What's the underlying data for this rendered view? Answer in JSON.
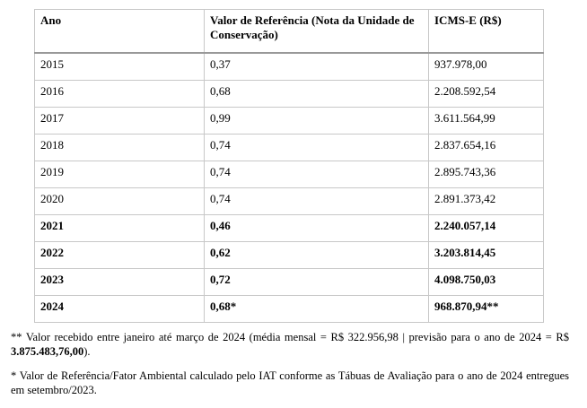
{
  "table": {
    "header": [
      "Ano",
      "Valor de Referência (Nota da Unidade de Conservação)",
      "ICMS-E (R$)"
    ],
    "rows": [
      {
        "cells": [
          "2015",
          "0,37",
          "937.978,00"
        ],
        "bold": false
      },
      {
        "cells": [
          "2016",
          "0,68",
          "2.208.592,54"
        ],
        "bold": false
      },
      {
        "cells": [
          "2017",
          "0,99",
          "3.611.564,99"
        ],
        "bold": false
      },
      {
        "cells": [
          "2018",
          "0,74",
          "2.837.654,16"
        ],
        "bold": false
      },
      {
        "cells": [
          "2019",
          "0,74",
          "2.895.743,36"
        ],
        "bold": false
      },
      {
        "cells": [
          "2020",
          "0,74",
          "2.891.373,42"
        ],
        "bold": false
      },
      {
        "cells": [
          "2021",
          "0,46",
          "2.240.057,14"
        ],
        "bold": true
      },
      {
        "cells": [
          "2022",
          "0,62",
          "3.203.814,45"
        ],
        "bold": true
      },
      {
        "cells": [
          "2023",
          "0,72",
          "4.098.750,03"
        ],
        "bold": true
      },
      {
        "cells": [
          "2024",
          "0,68*",
          "968.870,94**"
        ],
        "bold": true
      }
    ]
  },
  "notes": [
    [
      {
        "text": "** Valor recebido entre janeiro até março de 2024 (média mensal = R$ 322.956,98 | previsão para o ano de 2024 = R$ ",
        "bold": false
      },
      {
        "text": "3.875.483,76,00",
        "bold": true
      },
      {
        "text": ").",
        "bold": false
      }
    ],
    [
      {
        "text": "* Valor de Referência/Fator Ambiental calculado pelo IAT conforme as Tábuas de Avaliação para o ano de 2024 entregues em setembro/2023.",
        "bold": false
      }
    ]
  ]
}
